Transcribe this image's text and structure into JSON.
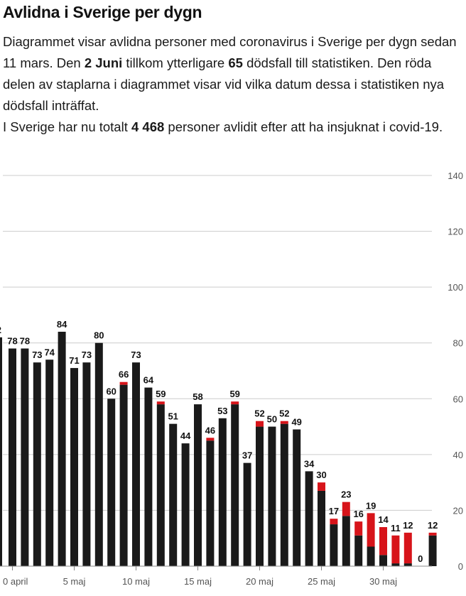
{
  "header": {
    "title": "Avlidna i Sverige per dygn"
  },
  "intro": {
    "line1_a": "Diagrammet visar avlidna personer med coronavirus i Sverige per dygn sedan 11 mars. Den ",
    "line1_date": "2 Juni",
    "line1_b": " tillkom ytterligare ",
    "line1_count": "65",
    "line1_c": " dödsfall till statistiken. Den röda delen av staplarna i diagrammet visar vid vilka datum dessa i statistiken nya dödsfall inträffat.",
    "line2_a": "I Sverige har nu totalt ",
    "line2_total": "4 468",
    "line2_b": " personer avlidit efter att ha insjuknat i covid-19."
  },
  "colors": {
    "existing": "#1a1a1a",
    "new": "#d7141a",
    "grid": "#cccccc",
    "axis_text": "#555555"
  },
  "chart_data": {
    "type": "bar",
    "stacked": true,
    "ylim": [
      0,
      140
    ],
    "yticks": [
      0,
      20,
      40,
      60,
      80,
      100,
      120,
      140
    ],
    "ytick_side": "right",
    "grid": true,
    "x_tick_labels": [
      {
        "index": 0,
        "label": "0 april"
      },
      {
        "index": 5,
        "label": "5 maj"
      },
      {
        "index": 10,
        "label": "10 maj"
      },
      {
        "index": 15,
        "label": "15 maj"
      },
      {
        "index": 20,
        "label": "20 maj"
      },
      {
        "index": 25,
        "label": "25 maj"
      },
      {
        "index": 30,
        "label": "30 maj"
      }
    ],
    "series": [
      {
        "values": [
          78,
          78,
          73,
          74,
          84,
          71,
          73,
          80,
          60,
          65,
          73,
          64,
          58,
          51,
          44,
          58,
          45,
          53,
          58,
          37,
          50,
          50,
          51,
          49,
          34,
          27,
          15,
          18,
          11,
          7,
          4,
          1,
          1,
          0,
          11
        ]
      },
      {
        "values": [
          0,
          0,
          0,
          0,
          0,
          0,
          0,
          0,
          0,
          1,
          0,
          0,
          1,
          0,
          0,
          0,
          1,
          0,
          1,
          0,
          2,
          0,
          1,
          0,
          0,
          3,
          2,
          5,
          5,
          12,
          10,
          10,
          11,
          0,
          1
        ]
      }
    ],
    "totals": [
      78,
      78,
      73,
      74,
      84,
      71,
      73,
      80,
      60,
      66,
      73,
      64,
      59,
      51,
      44,
      58,
      46,
      53,
      59,
      37,
      52,
      50,
      52,
      49,
      34,
      30,
      17,
      23,
      16,
      19,
      14,
      11,
      12,
      0,
      12
    ],
    "partial_first": {
      "label": "2",
      "value": 82
    }
  }
}
